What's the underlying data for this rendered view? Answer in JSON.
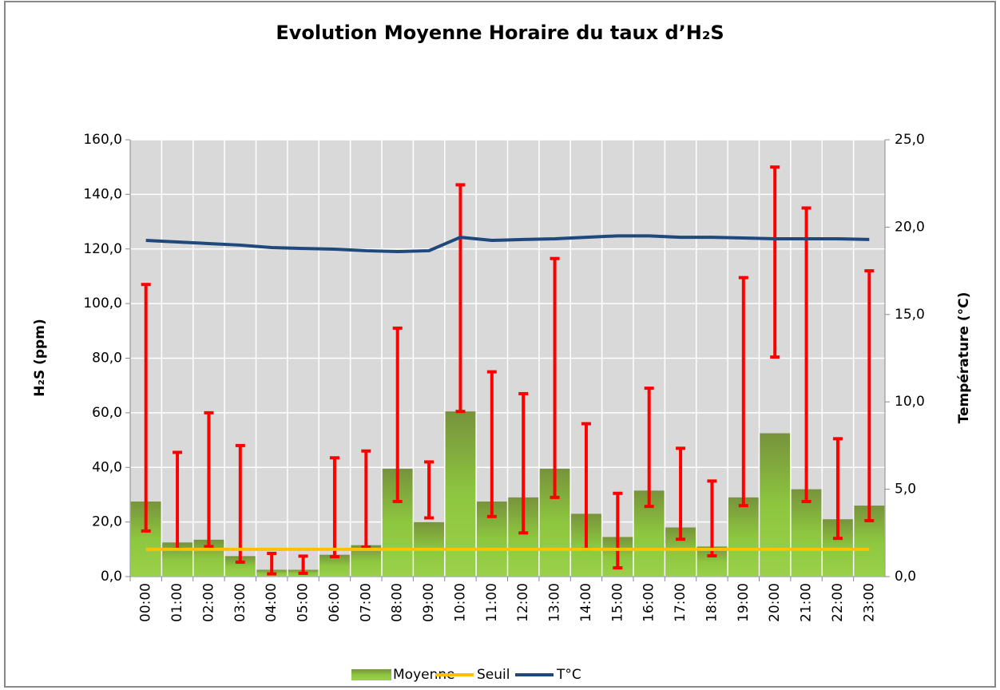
{
  "chart_data": {
    "type": "bar",
    "title": "Evolution Moyenne Horaire du taux d’H₂S",
    "y_label": "H₂S (ppm)",
    "y2_label": "Température (°C)",
    "categories": [
      "00:00",
      "01:00",
      "02:00",
      "03:00",
      "04:00",
      "05:00",
      "06:00",
      "07:00",
      "08:00",
      "09:00",
      "10:00",
      "11:00",
      "12:00",
      "13:00",
      "14:00",
      "15:00",
      "16:00",
      "17:00",
      "18:00",
      "19:00",
      "20:00",
      "21:00",
      "22:00",
      "23:00"
    ],
    "series": [
      {
        "name": "Moyenne",
        "type": "bar",
        "color": "#8dc63f",
        "values": [
          27.5,
          12.5,
          13.5,
          7.5,
          2.5,
          2.5,
          8,
          11.5,
          39.5,
          20,
          60.5,
          27.5,
          29,
          39.5,
          23,
          14.5,
          31.5,
          18,
          11,
          29,
          52.5,
          32,
          21,
          26
        ],
        "error_low": [
          16.7,
          10,
          11,
          5.3,
          1,
          1.2,
          7.3,
          10.8,
          27.5,
          21.5,
          60.5,
          22,
          16,
          29,
          10,
          3.2,
          25.7,
          13.7,
          7.6,
          26,
          80.4,
          27.5,
          14,
          20.5
        ],
        "error_high": [
          107,
          45.5,
          60,
          48,
          8.5,
          7.5,
          43.5,
          46,
          91,
          42,
          143.5,
          75,
          67,
          116.5,
          56,
          30.5,
          69,
          47,
          35,
          109.5,
          150,
          135,
          50.5,
          112
        ],
        "error_color": "#ff0000"
      },
      {
        "name": "Seuil",
        "type": "line",
        "color": "#ffc000",
        "values": [
          10,
          10,
          10,
          10,
          10,
          10,
          10,
          10,
          10,
          10,
          10,
          10,
          10,
          10,
          10,
          10,
          10,
          10,
          10,
          10,
          10,
          10,
          10,
          10
        ]
      },
      {
        "name": "T°C",
        "type": "line",
        "axis": "y2",
        "color": "#1f497d",
        "values": [
          19.24,
          19.15,
          19.06,
          18.97,
          18.83,
          18.78,
          18.74,
          18.65,
          18.6,
          18.65,
          19.42,
          19.24,
          19.29,
          19.33,
          19.42,
          19.5,
          19.5,
          19.42,
          19.42,
          19.38,
          19.33,
          19.33,
          19.33,
          19.29
        ]
      }
    ],
    "ylim": [
      0,
      160
    ],
    "yticks": [
      {
        "value": 0,
        "label": "0,0"
      },
      {
        "value": 20,
        "label": "20,0"
      },
      {
        "value": 40,
        "label": "40,0"
      },
      {
        "value": 60,
        "label": "60,0"
      },
      {
        "value": 80,
        "label": "80,0"
      },
      {
        "value": 100,
        "label": "100,0"
      },
      {
        "value": 120,
        "label": "120,0"
      },
      {
        "value": 140,
        "label": "140,0"
      },
      {
        "value": 160,
        "label": "160,0"
      }
    ],
    "y2lim": [
      0,
      25
    ],
    "y2ticks": [
      {
        "value": 0,
        "label": "0,0"
      },
      {
        "value": 5,
        "label": "5,0"
      },
      {
        "value": 10,
        "label": "10,0"
      },
      {
        "value": 15,
        "label": "15,0"
      },
      {
        "value": 20,
        "label": "20,0"
      },
      {
        "value": 25,
        "label": "25,0"
      }
    ],
    "grid": true,
    "legend": "bottom"
  }
}
